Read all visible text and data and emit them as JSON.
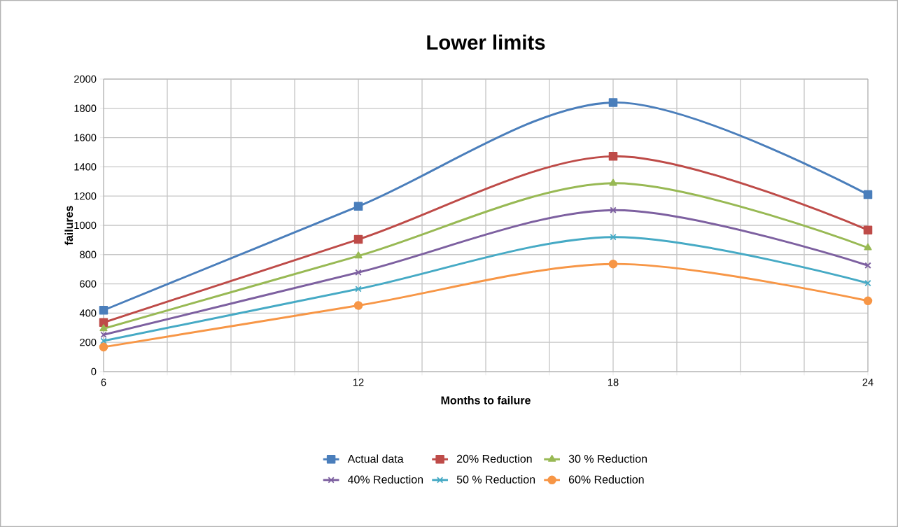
{
  "chart_data": {
    "type": "line",
    "title": "Lower limits",
    "xlabel": "Months to failure",
    "ylabel": "failures",
    "x": [
      6,
      12,
      18,
      24
    ],
    "xlim": [
      6,
      24
    ],
    "xticks": [
      6,
      {
        "value": 7.5,
        "label": null
      },
      {
        "value": 9,
        "label": null
      },
      {
        "value": 10.5,
        "label": null
      },
      12,
      {
        "value": 13.5,
        "label": null
      },
      {
        "value": 15,
        "label": null
      },
      {
        "value": 16.5,
        "label": null
      },
      18,
      {
        "value": 19.5,
        "label": null
      },
      {
        "value": 21,
        "label": null
      },
      {
        "value": 22.5,
        "label": null
      },
      24
    ],
    "ylim": [
      0,
      2000
    ],
    "yticks": [
      0,
      200,
      400,
      600,
      800,
      1000,
      1200,
      1400,
      1600,
      1800,
      2000
    ],
    "grid": true,
    "legend": "bottom",
    "line_style": "solid",
    "series": [
      {
        "name": "Actual data",
        "color": "#4a7ebb",
        "marker": "square",
        "values": [
          420,
          1130,
          1840,
          1210
        ]
      },
      {
        "name": "20% Reduction",
        "color": "#be4b48",
        "marker": "square",
        "values": [
          336,
          904,
          1472,
          968
        ]
      },
      {
        "name": "30 % Reduction",
        "color": "#98b954",
        "marker": "triangle",
        "values": [
          294,
          791,
          1288,
          847
        ]
      },
      {
        "name": "40% Reduction",
        "color": "#7d60a0",
        "marker": "cross",
        "values": [
          252,
          678,
          1104,
          726
        ]
      },
      {
        "name": "50 % Reduction",
        "color": "#46aac5",
        "marker": "cross",
        "values": [
          210,
          565,
          920,
          605
        ]
      },
      {
        "name": "60% Reduction",
        "color": "#f79646",
        "marker": "circle",
        "values": [
          168,
          452,
          736,
          484
        ]
      }
    ]
  }
}
